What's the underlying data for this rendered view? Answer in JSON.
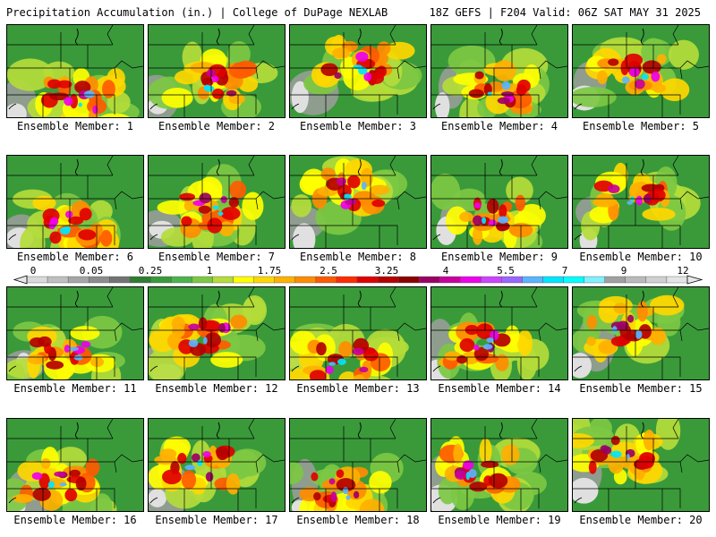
{
  "header": {
    "left_title": "Precipitation Accumulation (in.) | College of DuPage NEXLAB",
    "right_title": "18Z GEFS | F204 Valid: 06Z SAT MAY 31 2025"
  },
  "members": [
    {
      "label": "Ensemble Member: 1"
    },
    {
      "label": "Ensemble Member: 2"
    },
    {
      "label": "Ensemble Member: 3"
    },
    {
      "label": "Ensemble Member: 4"
    },
    {
      "label": "Ensemble Member: 5"
    },
    {
      "label": "Ensemble Member: 6"
    },
    {
      "label": "Ensemble Member: 7"
    },
    {
      "label": "Ensemble Member: 8"
    },
    {
      "label": "Ensemble Member: 9"
    },
    {
      "label": "Ensemble Member: 10"
    },
    {
      "label": "Ensemble Member: 11"
    },
    {
      "label": "Ensemble Member: 12"
    },
    {
      "label": "Ensemble Member: 13"
    },
    {
      "label": "Ensemble Member: 14"
    },
    {
      "label": "Ensemble Member: 15"
    },
    {
      "label": "Ensemble Member: 16"
    },
    {
      "label": "Ensemble Member: 17"
    },
    {
      "label": "Ensemble Member: 18"
    },
    {
      "label": "Ensemble Member: 19"
    },
    {
      "label": "Ensemble Member: 20"
    }
  ],
  "legend": {
    "tick_labels": [
      "0",
      "0.05",
      "0.25",
      "1",
      "1.75",
      "2.5",
      "3.25",
      "4",
      "5.5",
      "7",
      "9",
      "12"
    ],
    "colors": [
      "#d9d9d9",
      "#bfbfbf",
      "#a6a6a6",
      "#8c8c8c",
      "#737373",
      "#2e7d32",
      "#3a9a3a",
      "#4cb34c",
      "#7cc843",
      "#b4dc3a",
      "#ffff00",
      "#ffd700",
      "#ffb000",
      "#ff8c00",
      "#ff5a00",
      "#ff2a00",
      "#e00000",
      "#b40000",
      "#8b0000",
      "#9b0064",
      "#c8009b",
      "#ee00ee",
      "#cc44ff",
      "#9966ff",
      "#5ab4ff",
      "#00e5ff",
      "#00ffff",
      "#7ff0ff",
      "#a0a0a0",
      "#bababa",
      "#d0d0d0",
      "#e4e4e4"
    ]
  }
}
